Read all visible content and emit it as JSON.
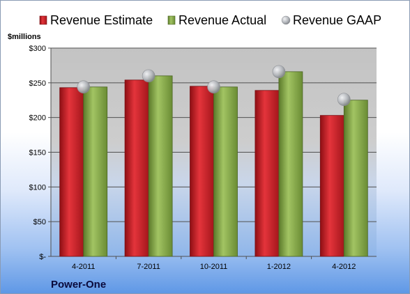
{
  "chart_data": {
    "type": "bar",
    "y_unit_label": "$millions",
    "company": "Power-One",
    "categories": [
      "4-2011",
      "7-2011",
      "10-2011",
      "1-2012",
      "4-2012"
    ],
    "series": [
      {
        "name": "Revenue Estimate",
        "kind": "bar",
        "color": "#cc2229",
        "values": [
          243,
          254,
          245,
          239,
          203
        ]
      },
      {
        "name": "Revenue Actual",
        "kind": "bar",
        "color": "#8aab4e",
        "values": [
          244,
          260,
          244,
          266,
          225
        ]
      },
      {
        "name": "Revenue GAAP",
        "kind": "marker",
        "color": "#b5b8bd",
        "values": [
          244,
          260,
          244,
          266,
          226
        ]
      }
    ],
    "ylim": [
      0,
      300
    ],
    "y_ticks": [
      {
        "value": 300,
        "label": "$300"
      },
      {
        "value": 250,
        "label": "$250"
      },
      {
        "value": 200,
        "label": "$200"
      },
      {
        "value": 150,
        "label": "$150"
      },
      {
        "value": 100,
        "label": "$100"
      },
      {
        "value": 50,
        "label": "$50"
      },
      {
        "value": 0,
        "label": "$-"
      }
    ],
    "grid": true,
    "legend_position": "top"
  }
}
